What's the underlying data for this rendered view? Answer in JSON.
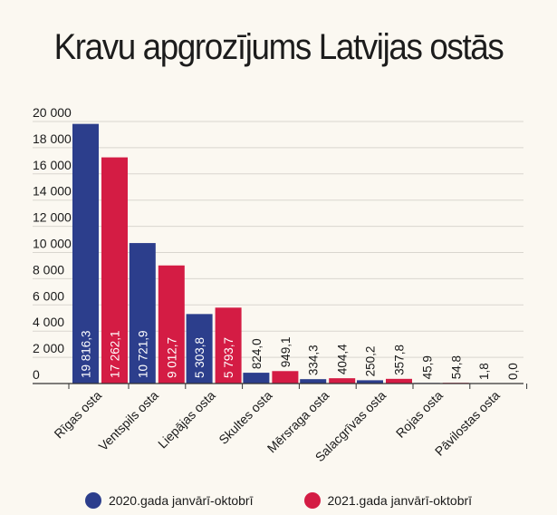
{
  "chart_data": {
    "type": "bar",
    "title": "Kravu apgrozījums Latvijas ostās",
    "xlabel": "",
    "ylabel": "",
    "ylim": [
      0,
      20000
    ],
    "yticks": [
      0,
      2000,
      4000,
      6000,
      8000,
      10000,
      12000,
      14000,
      16000,
      18000,
      20000
    ],
    "ytick_labels": [
      "0",
      "2 000",
      "4 000",
      "6 000",
      "8 000",
      "10 000",
      "12 000",
      "14 000",
      "16 000",
      "18 000",
      "20 000"
    ],
    "grid": true,
    "legend_position": "bottom",
    "categories": [
      "Rīgas osta",
      "Ventspils osta",
      "Liepājas osta",
      "Skultes osta",
      "Mērsraga osta",
      "Salacgrīvas osta",
      "Rojas osta",
      "Pāvilostas osta"
    ],
    "series": [
      {
        "name": "2020.gada janvārī-oktobrī",
        "color": "#2c3e8c",
        "values": [
          19816.3,
          10721.9,
          5303.8,
          824.0,
          334.3,
          250.2,
          45.9,
          1.8
        ],
        "labels": [
          "19 816,3",
          "10 721,9",
          "5 303,8",
          "824,0",
          "334,3",
          "250,2",
          "45,9",
          "1,8"
        ]
      },
      {
        "name": "2021.gada janvārī-oktobrī",
        "color": "#d41c44",
        "values": [
          17262.1,
          9012.7,
          5793.7,
          949.1,
          404.4,
          357.8,
          54.8,
          0.0
        ],
        "labels": [
          "17 262,1",
          "9 012,7",
          "5 793,7",
          "949,1",
          "404,4",
          "357,8",
          "54,8",
          "0,0"
        ]
      }
    ]
  }
}
